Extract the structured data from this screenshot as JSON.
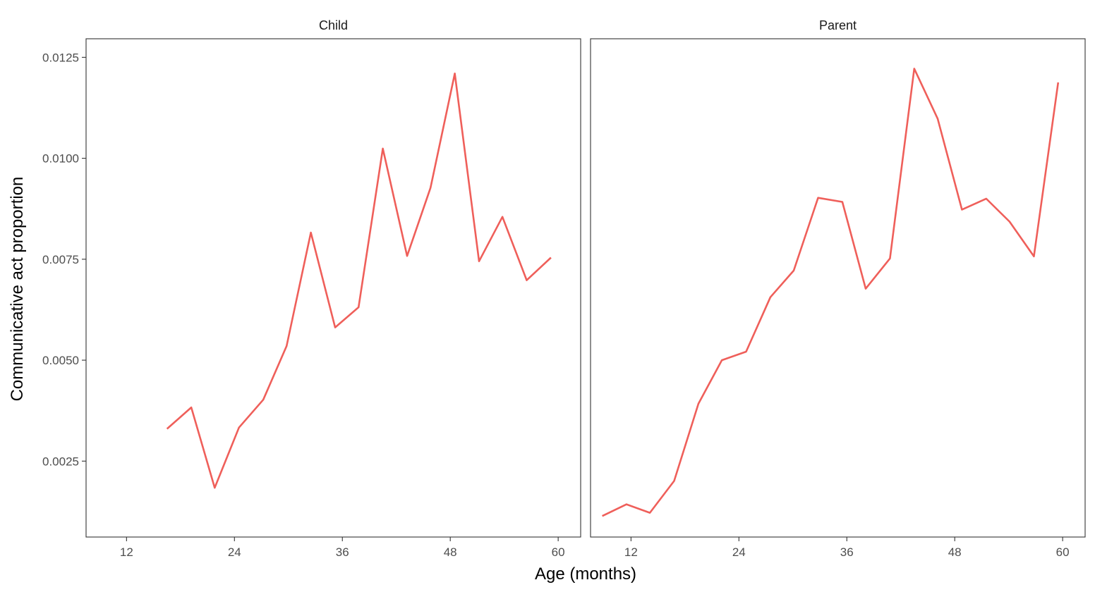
{
  "chart_data": {
    "type": "line",
    "xlabel": "Age (months)",
    "ylabel": "Communicative act proportion",
    "xlim": [
      7.5,
      62.5
    ],
    "ylim": [
      0.00062,
      0.01296
    ],
    "x_ticks": [
      "12",
      "24",
      "36",
      "48",
      "60"
    ],
    "y_ticks": [
      "0.0025",
      "0.0050",
      "0.0075",
      "0.0100",
      "0.0125"
    ],
    "grid": false,
    "line_color": "#EF5F5A",
    "panels": [
      {
        "label": "Child",
        "series": [
          {
            "x": [
              16.5,
              19.2,
              21.8,
              24.5,
              27.2,
              29.8,
              32.5,
              35.2,
              37.8,
              40.5,
              43.2,
              45.8,
              48.5,
              51.2,
              53.8,
              56.5,
              59.2
            ],
            "y": [
              0.0033,
              0.00383,
              0.00184,
              0.00333,
              0.00402,
              0.00535,
              0.00816,
              0.00581,
              0.00631,
              0.01024,
              0.00758,
              0.00927,
              0.0121,
              0.00745,
              0.00855,
              0.00698,
              0.00754
            ]
          }
        ]
      },
      {
        "label": "Parent",
        "series": [
          {
            "x": [
              8.8,
              11.5,
              14.1,
              16.8,
              19.5,
              22.1,
              24.8,
              27.5,
              30.1,
              32.8,
              35.5,
              38.1,
              40.8,
              43.5,
              46.1,
              48.8,
              51.5,
              54.1,
              56.8,
              59.5
            ],
            "y": [
              0.00114,
              0.00143,
              0.00122,
              0.00201,
              0.00392,
              0.005,
              0.00521,
              0.00656,
              0.00722,
              0.00902,
              0.00892,
              0.00677,
              0.00752,
              0.01222,
              0.01098,
              0.00873,
              0.009,
              0.00843,
              0.00757,
              0.01188
            ]
          }
        ]
      }
    ]
  }
}
